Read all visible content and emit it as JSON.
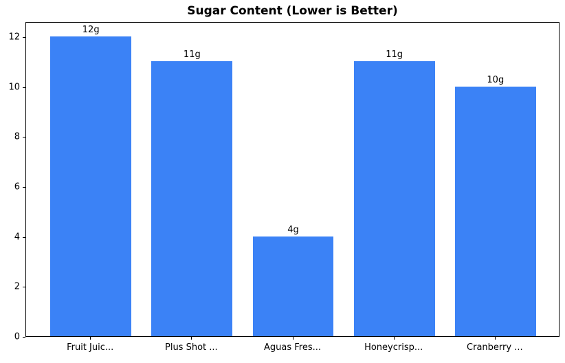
{
  "chart_data": {
    "type": "bar",
    "title": "Sugar Content (Lower is Better)",
    "categories": [
      "Fruit Juic...",
      "Plus Shot ...",
      "Aguas Fres...",
      "Honeycrisp...",
      "Cranberry ..."
    ],
    "values": [
      12,
      11,
      4,
      11,
      10
    ],
    "bar_labels": [
      "12g",
      "11g",
      "4g",
      "11g",
      "10g"
    ],
    "xlabel": "",
    "ylabel": "",
    "yticks": [
      0,
      2,
      4,
      6,
      8,
      10,
      12
    ],
    "ylim": [
      0,
      12.6
    ],
    "xlim": [
      -0.64,
      4.64
    ],
    "bar_width_units": 0.8,
    "bar_color": "#3b82f6",
    "axis_color": "#000000",
    "text_color": "#000000",
    "background_color": "#ffffff",
    "grid": "off",
    "legend": "none"
  }
}
